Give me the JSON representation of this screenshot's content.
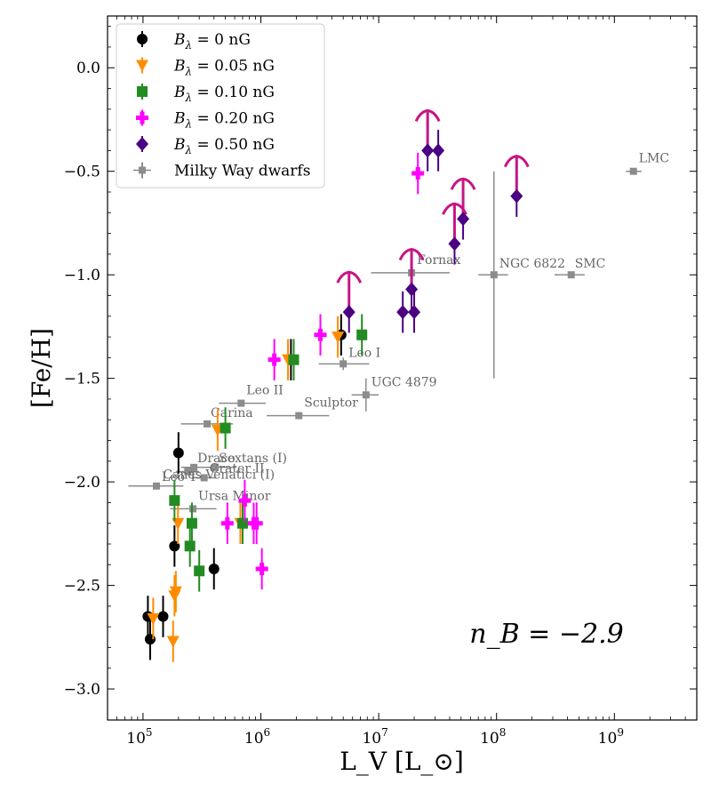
{
  "chart_data": {
    "type": "scatter",
    "title": "",
    "xlabel": "L_V [L_⊙]",
    "ylabel": "[Fe/H]",
    "xscale": "log",
    "xlim": [
      50000,
      5000000000
    ],
    "ylim": [
      -3.15,
      0.25
    ],
    "x_ticks": [
      {
        "value": 100000,
        "base": "10",
        "exp": "5"
      },
      {
        "value": 1000000,
        "base": "10",
        "exp": "6"
      },
      {
        "value": 10000000,
        "base": "10",
        "exp": "7"
      },
      {
        "value": 100000000,
        "base": "10",
        "exp": "8"
      },
      {
        "value": 1000000000,
        "base": "10",
        "exp": "9"
      }
    ],
    "y_ticks": [
      {
        "value": 0.0,
        "label": "0.0"
      },
      {
        "value": -0.5,
        "label": "−0.5"
      },
      {
        "value": -1.0,
        "label": "−1.0"
      },
      {
        "value": -1.5,
        "label": "−1.5"
      },
      {
        "value": -2.0,
        "label": "−2.0"
      },
      {
        "value": -2.5,
        "label": "−2.5"
      },
      {
        "value": -3.0,
        "label": "−3.0"
      }
    ],
    "annotation": "n_B = −2.9",
    "legend_position": "upper-left",
    "series": [
      {
        "name": "B_λ = 0 nG",
        "label_main": "B",
        "label_sub": "λ",
        "label_rest": " = 0 nG",
        "marker": "circle",
        "color": "#000000",
        "points": [
          {
            "x": 110000,
            "y": -2.65,
            "yerr": 0.1
          },
          {
            "x": 115000,
            "y": -2.76,
            "yerr": 0.1
          },
          {
            "x": 148000,
            "y": -2.65,
            "yerr": 0.1
          },
          {
            "x": 185000,
            "y": -2.31,
            "yerr": 0.1
          },
          {
            "x": 200000,
            "y": -1.86,
            "yerr": 0.1
          },
          {
            "x": 400000,
            "y": -2.42,
            "yerr": 0.1
          },
          {
            "x": 1800000,
            "y": -1.41,
            "yerr": 0.1
          },
          {
            "x": 4800000,
            "y": -1.29,
            "yerr": 0.1
          }
        ]
      },
      {
        "name": "B_λ = 0.05 nG",
        "label_main": "B",
        "label_sub": "λ",
        "label_rest": " = 0.05 nG",
        "marker": "triangle-down",
        "color": "#ff8c00",
        "points": [
          {
            "x": 122000,
            "y": -2.66,
            "yerr": 0.1
          },
          {
            "x": 180000,
            "y": -2.77,
            "yerr": 0.1
          },
          {
            "x": 185000,
            "y": -2.55,
            "yerr": 0.1
          },
          {
            "x": 190000,
            "y": -2.53,
            "yerr": 0.1
          },
          {
            "x": 198000,
            "y": -2.2,
            "yerr": 0.1
          },
          {
            "x": 430000,
            "y": -1.75,
            "yerr": 0.1
          },
          {
            "x": 670000,
            "y": -2.2,
            "yerr": 0.1
          },
          {
            "x": 1700000,
            "y": -1.41,
            "yerr": 0.1
          },
          {
            "x": 4500000,
            "y": -1.3,
            "yerr": 0.1
          }
        ]
      },
      {
        "name": "B_λ = 0.10 nG",
        "label_main": "B",
        "label_sub": "λ",
        "label_rest": " = 0.10 nG",
        "marker": "square",
        "color": "#228b22",
        "points": [
          {
            "x": 185000,
            "y": -2.09,
            "yerr": 0.1
          },
          {
            "x": 250000,
            "y": -2.31,
            "yerr": 0.1
          },
          {
            "x": 260000,
            "y": -2.2,
            "yerr": 0.1
          },
          {
            "x": 300000,
            "y": -2.43,
            "yerr": 0.1
          },
          {
            "x": 500000,
            "y": -1.74,
            "yerr": 0.1
          },
          {
            "x": 700000,
            "y": -2.2,
            "yerr": 0.1
          },
          {
            "x": 1900000,
            "y": -1.41,
            "yerr": 0.1
          },
          {
            "x": 7200000,
            "y": -1.29,
            "yerr": 0.1
          }
        ]
      },
      {
        "name": "B_λ = 0.20 nG",
        "label_main": "B",
        "label_sub": "λ",
        "label_rest": " = 0.20 nG",
        "marker": "plus",
        "color": "#ff00ff",
        "points": [
          {
            "x": 520000,
            "y": -2.2,
            "yerr": 0.1
          },
          {
            "x": 730000,
            "y": -2.09,
            "yerr": 0.1
          },
          {
            "x": 870000,
            "y": -2.2,
            "yerr": 0.1
          },
          {
            "x": 920000,
            "y": -2.2,
            "yerr": 0.1
          },
          {
            "x": 1020000,
            "y": -2.42,
            "yerr": 0.1
          },
          {
            "x": 1300000,
            "y": -1.41,
            "yerr": 0.1
          },
          {
            "x": 3200000,
            "y": -1.29,
            "yerr": 0.1
          },
          {
            "x": 21500000,
            "y": -0.51,
            "yerr": 0.1
          }
        ]
      },
      {
        "name": "B_λ = 0.50 nG",
        "label_main": "B",
        "label_sub": "λ",
        "label_rest": " = 0.50 nG",
        "marker": "diamond",
        "color": "#4b0082",
        "points": [
          {
            "x": 5600000,
            "y": -1.18,
            "yerr": 0.1,
            "lower_limit": true
          },
          {
            "x": 16000000,
            "y": -1.18,
            "yerr": 0.1
          },
          {
            "x": 19000000,
            "y": -1.07,
            "yerr": 0.1,
            "lower_limit": true
          },
          {
            "x": 20000000,
            "y": -1.18,
            "yerr": 0.1
          },
          {
            "x": 26000000,
            "y": -0.4,
            "yerr": 0.1,
            "lower_limit": true
          },
          {
            "x": 32000000,
            "y": -0.4,
            "yerr": 0.1
          },
          {
            "x": 44000000,
            "y": -0.85,
            "yerr": 0.1,
            "lower_limit": true
          },
          {
            "x": 52000000,
            "y": -0.73,
            "yerr": 0.1,
            "lower_limit": true
          },
          {
            "x": 148000000,
            "y": -0.62,
            "yerr": 0.1,
            "lower_limit": true
          }
        ]
      },
      {
        "name": "Milky Way dwarfs",
        "label_main": "Milky Way dwarfs",
        "label_sub": "",
        "label_rest": "",
        "marker": "small-square",
        "color": "#8c8c8c",
        "points": [
          {
            "name": "LMC",
            "x": 1450000000,
            "y": -0.5,
            "xlo": 1250000000,
            "xhi": 1700000000,
            "ylo": -0.5,
            "yhi": -0.5,
            "label_dx": 6,
            "label_dy": -10
          },
          {
            "name": "SMC",
            "x": 430000000,
            "y": -1.0,
            "xlo": 310000000,
            "xhi": 560000000,
            "ylo": -1.0,
            "yhi": -1.0,
            "label_dx": 4,
            "label_dy": -8
          },
          {
            "name": "NGC 6822",
            "x": 95000000,
            "y": -1.0,
            "xlo": 70000000,
            "xhi": 125000000,
            "ylo": -1.5,
            "yhi": -0.5,
            "label_dx": 6,
            "label_dy": -8
          },
          {
            "name": "Fornax",
            "x": 19000000,
            "y": -0.99,
            "xlo": 8600000,
            "xhi": 40000000,
            "ylo": -1.02,
            "yhi": -0.96,
            "label_dx": 6,
            "label_dy": -10
          },
          {
            "name": "Leo I",
            "x": 5000000,
            "y": -1.43,
            "xlo": 3100000,
            "xhi": 8300000,
            "ylo": -1.46,
            "yhi": -1.4,
            "label_dx": 6,
            "label_dy": -8
          },
          {
            "name": "UGC 4879",
            "x": 7800000,
            "y": -1.58,
            "xlo": 5900000,
            "xhi": 10000000,
            "ylo": -1.66,
            "yhi": -1.5,
            "label_dx": 6,
            "label_dy": -10
          },
          {
            "name": "Sculptor",
            "x": 2100000,
            "y": -1.68,
            "xlo": 1120000,
            "xhi": 3800000,
            "ylo": -1.68,
            "yhi": -1.68,
            "label_dx": 6,
            "label_dy": -10
          },
          {
            "name": "Leo II",
            "x": 680000,
            "y": -1.62,
            "xlo": 440000,
            "xhi": 1100000,
            "ylo": -1.62,
            "yhi": -1.62,
            "label_dx": 6,
            "label_dy": -10
          },
          {
            "name": "Carina",
            "x": 350000,
            "y": -1.72,
            "xlo": 210000,
            "xhi": 580000,
            "ylo": -1.72,
            "yhi": -1.72,
            "label_dx": 4,
            "label_dy": -8
          },
          {
            "name": "Draco",
            "x": 270000,
            "y": -1.93,
            "xlo": 210000,
            "xhi": 340000,
            "ylo": -1.93,
            "yhi": -1.93,
            "label_dx": 4,
            "label_dy": -6
          },
          {
            "name": "Sextans (I)",
            "x": 410000,
            "y": -1.93,
            "xlo": 270000,
            "xhi": 620000,
            "ylo": -1.93,
            "yhi": -1.93,
            "label_dx": 4,
            "label_dy": -6
          },
          {
            "name": "Crater II",
            "x": 330000,
            "y": -1.98,
            "xlo": 260000,
            "xhi": 420000,
            "ylo": -1.98,
            "yhi": -1.98,
            "label_dx": 6,
            "label_dy": -6
          },
          {
            "name": "Canes Venatici (I)",
            "x": 240000,
            "y": -1.95,
            "xlo": 190000,
            "xhi": 300000,
            "ylo": -1.95,
            "yhi": -1.95,
            "label_dx": -28,
            "label_dy": 8
          },
          {
            "name": "Leo T",
            "x": 130000,
            "y": -2.02,
            "xlo": 75000,
            "xhi": 220000,
            "ylo": -2.02,
            "yhi": -2.02,
            "label_dx": 6,
            "label_dy": -6
          },
          {
            "name": "Ursa Minor",
            "x": 265000,
            "y": -2.13,
            "xlo": 170000,
            "xhi": 420000,
            "ylo": -2.13,
            "yhi": -2.13,
            "label_dx": 6,
            "label_dy": -10
          }
        ]
      }
    ]
  }
}
